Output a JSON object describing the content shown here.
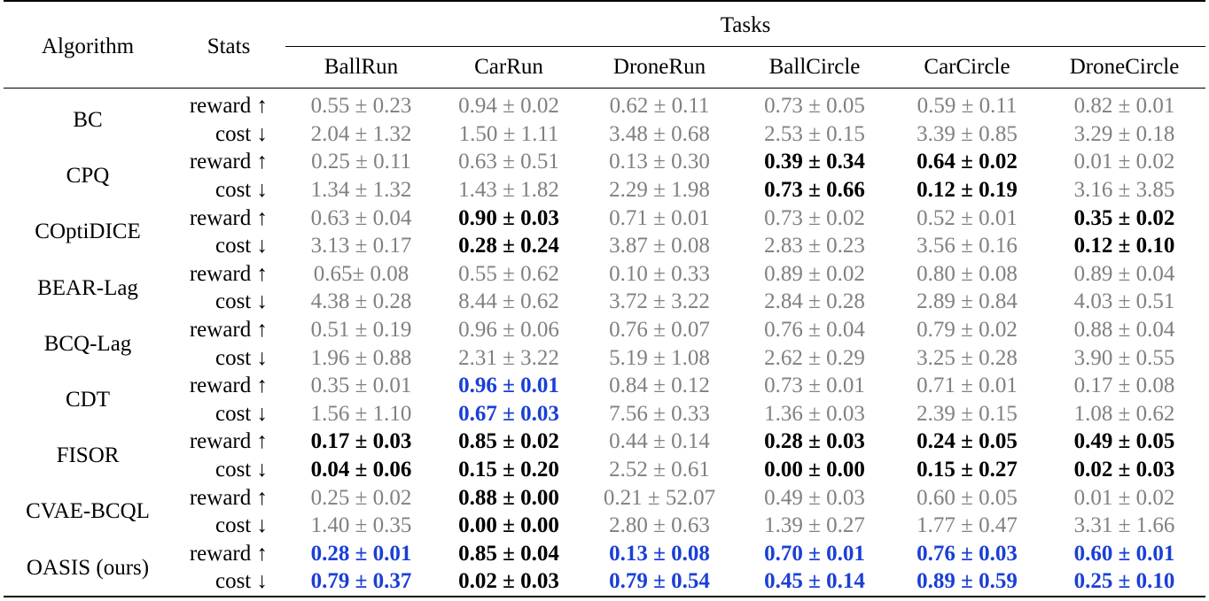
{
  "header": {
    "algorithm": "Algorithm",
    "stats": "Stats",
    "tasks": "Tasks",
    "columns": [
      "BallRun",
      "CarRun",
      "DroneRun",
      "BallCircle",
      "CarCircle",
      "DroneCircle"
    ]
  },
  "stat_labels": {
    "reward": "reward ↑",
    "cost": "cost ↓"
  },
  "colors": {
    "best": "#1a3fd6",
    "safe": "#000000",
    "unsafe": "#808080"
  },
  "rows": [
    {
      "algorithm": "BC",
      "reward": [
        [
          "0.55 ± 0.23",
          "g"
        ],
        [
          "0.94 ± 0.02",
          "g"
        ],
        [
          "0.62 ± 0.11",
          "g"
        ],
        [
          "0.73 ± 0.05",
          "g"
        ],
        [
          "0.59 ± 0.11",
          "g"
        ],
        [
          "0.82 ± 0.01",
          "g"
        ]
      ],
      "cost": [
        [
          "2.04 ± 1.32",
          "g"
        ],
        [
          "1.50 ± 1.11",
          "g"
        ],
        [
          "3.48 ± 0.68",
          "g"
        ],
        [
          "2.53 ± 0.15",
          "g"
        ],
        [
          "3.39 ± 0.85",
          "g"
        ],
        [
          "3.29 ± 0.18",
          "g"
        ]
      ]
    },
    {
      "algorithm": "CPQ",
      "reward": [
        [
          "0.25 ± 0.11",
          "g"
        ],
        [
          "0.63 ± 0.51",
          "g"
        ],
        [
          "0.13 ± 0.30",
          "g"
        ],
        [
          "0.39 ± 0.34",
          "b"
        ],
        [
          "0.64 ± 0.02",
          "b"
        ],
        [
          "0.01 ± 0.02",
          "g"
        ]
      ],
      "cost": [
        [
          "1.34 ± 1.32",
          "g"
        ],
        [
          "1.43 ± 1.82",
          "g"
        ],
        [
          "2.29 ± 1.98",
          "g"
        ],
        [
          "0.73 ± 0.66",
          "b"
        ],
        [
          "0.12 ± 0.19",
          "b"
        ],
        [
          "3.16 ± 3.85",
          "g"
        ]
      ]
    },
    {
      "algorithm": "COptiDICE",
      "reward": [
        [
          "0.63 ± 0.04",
          "g"
        ],
        [
          "0.90 ± 0.03",
          "b"
        ],
        [
          "0.71 ± 0.01",
          "g"
        ],
        [
          "0.73 ± 0.02",
          "g"
        ],
        [
          "0.52 ± 0.01",
          "g"
        ],
        [
          "0.35 ± 0.02",
          "b"
        ]
      ],
      "cost": [
        [
          "3.13 ± 0.17",
          "g"
        ],
        [
          "0.28 ± 0.24",
          "b"
        ],
        [
          "3.87 ± 0.08",
          "g"
        ],
        [
          "2.83 ± 0.23",
          "g"
        ],
        [
          "3.56 ± 0.16",
          "g"
        ],
        [
          "0.12 ± 0.10",
          "b"
        ]
      ]
    },
    {
      "algorithm": "BEAR-Lag",
      "reward": [
        [
          "0.65± 0.08",
          "g"
        ],
        [
          "0.55 ± 0.62",
          "g"
        ],
        [
          "0.10 ± 0.33",
          "g"
        ],
        [
          "0.89 ± 0.02",
          "g"
        ],
        [
          "0.80 ± 0.08",
          "g"
        ],
        [
          "0.89 ± 0.04",
          "g"
        ]
      ],
      "cost": [
        [
          "4.38 ± 0.28",
          "g"
        ],
        [
          "8.44 ± 0.62",
          "g"
        ],
        [
          "3.72 ± 3.22",
          "g"
        ],
        [
          "2.84 ± 0.28",
          "g"
        ],
        [
          "2.89 ± 0.84",
          "g"
        ],
        [
          "4.03 ± 0.51",
          "g"
        ]
      ]
    },
    {
      "algorithm": "BCQ-Lag",
      "reward": [
        [
          "0.51 ± 0.19",
          "g"
        ],
        [
          "0.96 ± 0.06",
          "g"
        ],
        [
          "0.76 ± 0.07",
          "g"
        ],
        [
          "0.76 ± 0.04",
          "g"
        ],
        [
          "0.79 ± 0.02",
          "g"
        ],
        [
          "0.88 ± 0.04",
          "g"
        ]
      ],
      "cost": [
        [
          "1.96 ± 0.88",
          "g"
        ],
        [
          "2.31 ± 3.22",
          "g"
        ],
        [
          "5.19 ± 1.08",
          "g"
        ],
        [
          "2.62 ± 0.29",
          "g"
        ],
        [
          "3.25 ± 0.28",
          "g"
        ],
        [
          "3.90 ± 0.55",
          "g"
        ]
      ]
    },
    {
      "algorithm": "CDT",
      "reward": [
        [
          "0.35 ± 0.01",
          "g"
        ],
        [
          "0.96 ± 0.01",
          "u"
        ],
        [
          "0.84 ± 0.12",
          "g"
        ],
        [
          "0.73 ± 0.01",
          "g"
        ],
        [
          "0.71 ± 0.01",
          "g"
        ],
        [
          "0.17 ± 0.08",
          "g"
        ]
      ],
      "cost": [
        [
          "1.56 ± 1.10",
          "g"
        ],
        [
          "0.67 ± 0.03",
          "u"
        ],
        [
          "7.56 ± 0.33",
          "g"
        ],
        [
          "1.36 ± 0.03",
          "g"
        ],
        [
          "2.39 ± 0.15",
          "g"
        ],
        [
          "1.08 ± 0.62",
          "g"
        ]
      ]
    },
    {
      "algorithm": "FISOR",
      "reward": [
        [
          "0.17 ± 0.03",
          "b"
        ],
        [
          "0.85 ± 0.02",
          "b"
        ],
        [
          "0.44 ± 0.14",
          "g"
        ],
        [
          "0.28 ± 0.03",
          "b"
        ],
        [
          "0.24 ± 0.05",
          "b"
        ],
        [
          "0.49 ± 0.05",
          "b"
        ]
      ],
      "cost": [
        [
          "0.04 ± 0.06",
          "b"
        ],
        [
          "0.15 ± 0.20",
          "b"
        ],
        [
          "2.52 ± 0.61",
          "g"
        ],
        [
          "0.00 ± 0.00",
          "b"
        ],
        [
          "0.15 ± 0.27",
          "b"
        ],
        [
          "0.02 ± 0.03",
          "b"
        ]
      ]
    },
    {
      "algorithm": "CVAE-BCQL",
      "reward": [
        [
          "0.25 ± 0.02",
          "g"
        ],
        [
          "0.88 ± 0.00",
          "b"
        ],
        [
          "0.21 ± 52.07",
          "g"
        ],
        [
          "0.49 ± 0.03",
          "g"
        ],
        [
          "0.60 ± 0.05",
          "g"
        ],
        [
          "0.01 ± 0.02",
          "g"
        ]
      ],
      "cost": [
        [
          "1.40 ± 0.35",
          "g"
        ],
        [
          "0.00 ± 0.00",
          "b"
        ],
        [
          "2.80 ± 0.63",
          "g"
        ],
        [
          "1.39 ± 0.27",
          "g"
        ],
        [
          "1.77 ± 0.47",
          "g"
        ],
        [
          "3.31 ± 1.66",
          "g"
        ]
      ]
    },
    {
      "algorithm": "OASIS (ours)",
      "reward": [
        [
          "0.28 ± 0.01",
          "u"
        ],
        [
          "0.85 ± 0.04",
          "b"
        ],
        [
          "0.13 ± 0.08",
          "u"
        ],
        [
          "0.70 ± 0.01",
          "u"
        ],
        [
          "0.76 ± 0.03",
          "u"
        ],
        [
          "0.60 ± 0.01",
          "u"
        ]
      ],
      "cost": [
        [
          "0.79 ± 0.37",
          "u"
        ],
        [
          "0.02 ± 0.03",
          "b"
        ],
        [
          "0.79 ± 0.54",
          "u"
        ],
        [
          "0.45 ± 0.14",
          "u"
        ],
        [
          "0.89 ± 0.59",
          "u"
        ],
        [
          "0.25 ± 0.10",
          "u"
        ]
      ]
    }
  ]
}
